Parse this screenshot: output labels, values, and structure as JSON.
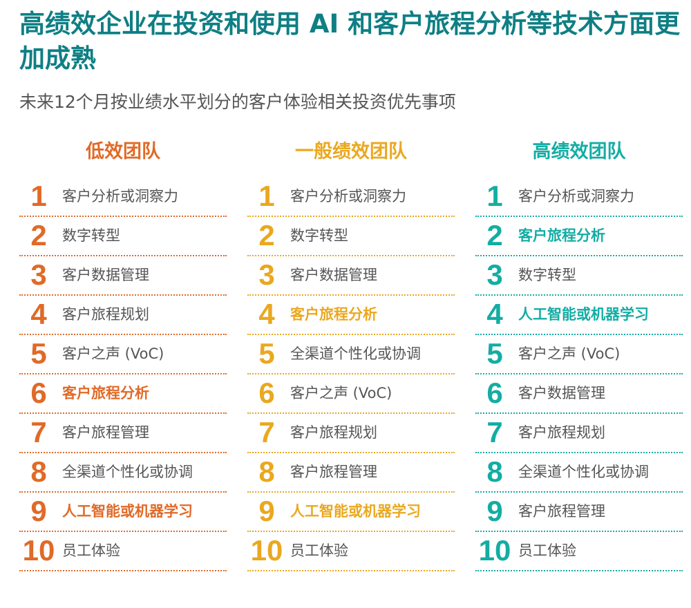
{
  "title": "高绩效企业在投资和使用 AI 和客户旅程分析等技术方面更加成熟",
  "subtitle": "未来12个月按业绩水平划分的客户体验相关投资优先事项",
  "columns": [
    {
      "heading": "低效团队",
      "color": "#e06a27",
      "items": [
        {
          "rank": "1",
          "label": "客户分析或洞察力",
          "highlight": false
        },
        {
          "rank": "2",
          "label": "数字转型",
          "highlight": false
        },
        {
          "rank": "3",
          "label": "客户数据管理",
          "highlight": false
        },
        {
          "rank": "4",
          "label": "客户旅程规划",
          "highlight": false
        },
        {
          "rank": "5",
          "label": "客户之声 (VoC)",
          "highlight": false
        },
        {
          "rank": "6",
          "label": "客户旅程分析",
          "highlight": true
        },
        {
          "rank": "7",
          "label": "客户旅程管理",
          "highlight": false
        },
        {
          "rank": "8",
          "label": "全渠道个性化或协调",
          "highlight": false
        },
        {
          "rank": "9",
          "label": "人工智能或机器学习",
          "highlight": true
        },
        {
          "rank": "10",
          "label": "员工体验",
          "highlight": false
        }
      ]
    },
    {
      "heading": "一般绩效团队",
      "color": "#eaa81f",
      "items": [
        {
          "rank": "1",
          "label": "客户分析或洞察力",
          "highlight": false
        },
        {
          "rank": "2",
          "label": "数字转型",
          "highlight": false
        },
        {
          "rank": "3",
          "label": "客户数据管理",
          "highlight": false
        },
        {
          "rank": "4",
          "label": "客户旅程分析",
          "highlight": true
        },
        {
          "rank": "5",
          "label": "全渠道个性化或协调",
          "highlight": false
        },
        {
          "rank": "6",
          "label": "客户之声 (VoC)",
          "highlight": false
        },
        {
          "rank": "7",
          "label": "客户旅程规划",
          "highlight": false
        },
        {
          "rank": "8",
          "label": "客户旅程管理",
          "highlight": false
        },
        {
          "rank": "9",
          "label": "人工智能或机器学习",
          "highlight": true
        },
        {
          "rank": "10",
          "label": "员工体验",
          "highlight": false
        }
      ]
    },
    {
      "heading": "高绩效团队",
      "color": "#13ada4",
      "items": [
        {
          "rank": "1",
          "label": "客户分析或洞察力",
          "highlight": false
        },
        {
          "rank": "2",
          "label": "客户旅程分析",
          "highlight": true
        },
        {
          "rank": "3",
          "label": "数字转型",
          "highlight": false
        },
        {
          "rank": "4",
          "label": "人工智能或机器学习",
          "highlight": true
        },
        {
          "rank": "5",
          "label": "客户之声 (VoC)",
          "highlight": false
        },
        {
          "rank": "6",
          "label": "客户数据管理",
          "highlight": false
        },
        {
          "rank": "7",
          "label": "客户旅程规划",
          "highlight": false
        },
        {
          "rank": "8",
          "label": "全渠道个性化或协调",
          "highlight": false
        },
        {
          "rank": "9",
          "label": "客户旅程管理",
          "highlight": false
        },
        {
          "rank": "10",
          "label": "员工体验",
          "highlight": false
        }
      ]
    }
  ]
}
